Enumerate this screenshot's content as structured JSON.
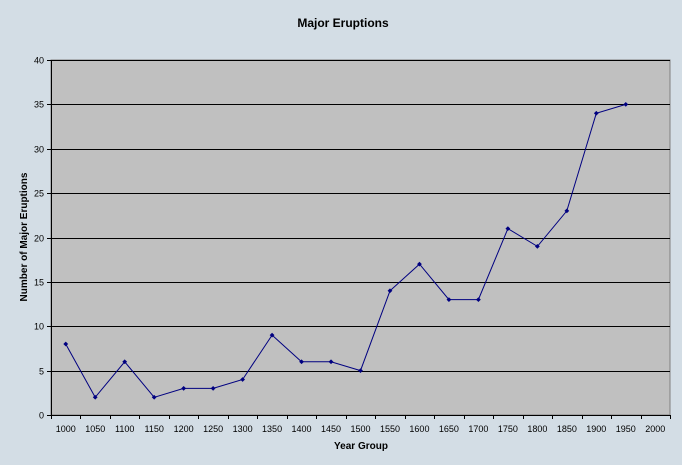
{
  "chart_data": {
    "type": "line",
    "title": "Major Eruptions",
    "xlabel": "Year Group",
    "ylabel": "Number of Major Eruptions",
    "categories": [
      "1000",
      "1050",
      "1100",
      "1150",
      "1200",
      "1250",
      "1300",
      "1350",
      "1400",
      "1450",
      "1500",
      "1550",
      "1600",
      "1650",
      "1700",
      "1750",
      "1800",
      "1850",
      "1900",
      "1950",
      "2000"
    ],
    "series": [
      {
        "values": [
          8,
          2,
          6,
          2,
          3,
          3,
          4,
          9,
          6,
          6,
          5,
          14,
          17,
          13,
          13,
          21,
          19,
          23,
          34,
          35,
          null
        ]
      }
    ],
    "ylim": [
      0,
      40
    ],
    "yticks": [
      0,
      5,
      10,
      15,
      20,
      25,
      30,
      35,
      40
    ],
    "grid": true,
    "legend": "none",
    "colors": {
      "background": "#d3dde5",
      "plot_area": "#c0c0c0",
      "line": "#000080",
      "gridline": "#000000"
    }
  }
}
